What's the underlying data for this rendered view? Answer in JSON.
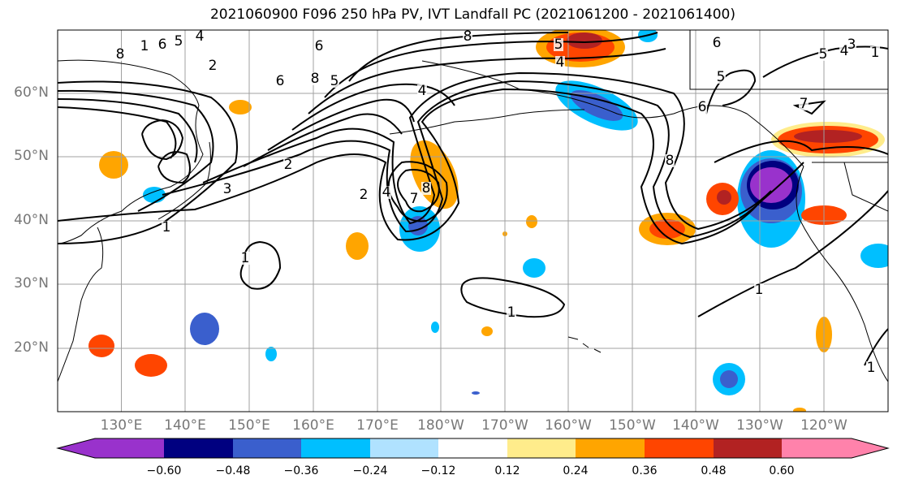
{
  "title": "2021060900 F096 250 hPa PV, IVT Landfall PC (2021061200 - 2021061400)",
  "lat_labels": [
    "60°N",
    "50°N",
    "40°N",
    "30°N",
    "20°N"
  ],
  "lon_labels": [
    "130°E",
    "140°E",
    "150°E",
    "160°E",
    "170°E",
    "180°W",
    "170°W",
    "160°W",
    "150°W",
    "140°W",
    "130°W",
    "120°W"
  ],
  "colorbar": {
    "ticks": [
      "−0.60",
      "−0.48",
      "−0.36",
      "−0.24",
      "−0.12",
      "0.12",
      "0.24",
      "0.36",
      "0.48",
      "0.60"
    ],
    "colors": [
      "#9932cc",
      "#000080",
      "#3a5fcd",
      "#00bfff",
      "#b0e2ff",
      "#ffffff",
      "#ffec8b",
      "#ffa500",
      "#ff4500",
      "#b22222",
      "#ff82ab"
    ]
  },
  "contour_labels": [
    "8",
    "1",
    "6",
    "5",
    "4",
    "2",
    "6",
    "8",
    "5",
    "6",
    "4",
    "2",
    "8",
    "5",
    "4",
    "3",
    "1",
    "1",
    "1",
    "2",
    "4",
    "7",
    "8",
    "8",
    "6",
    "5",
    "7",
    "6",
    "5",
    "4",
    "3",
    "1",
    "1",
    "1"
  ]
}
